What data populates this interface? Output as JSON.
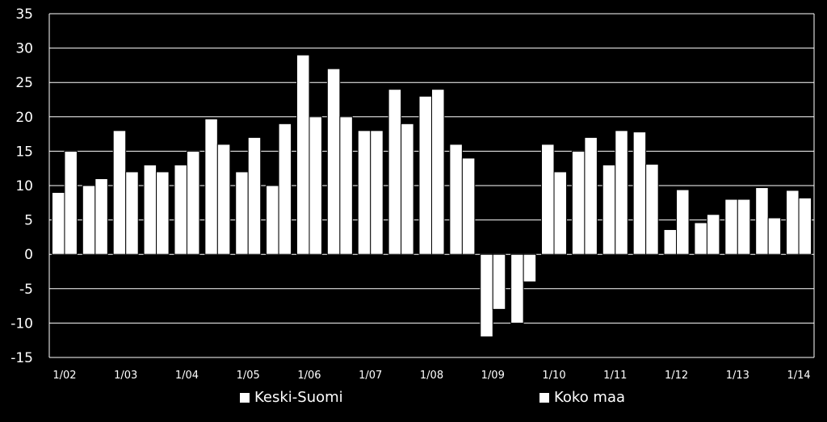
{
  "chart_data": {
    "type": "bar",
    "title": "",
    "xlabel": "",
    "ylabel": "",
    "ylim": [
      -15,
      35
    ],
    "yticks": [
      35,
      30,
      25,
      20,
      15,
      10,
      5,
      0,
      -5,
      -10,
      -15
    ],
    "grid": true,
    "legend_position": "bottom",
    "colors": {
      "background": "#000000",
      "bars": "#ffffff",
      "grid": "#ffffff",
      "text": "#ffffff"
    },
    "x_tick_labels": [
      {
        "label": "1/02",
        "index": 0
      },
      {
        "label": "1/03",
        "index": 2
      },
      {
        "label": "1/04",
        "index": 4
      },
      {
        "label": "1/05",
        "index": 6
      },
      {
        "label": "1/06",
        "index": 8
      },
      {
        "label": "1/07",
        "index": 10
      },
      {
        "label": "1/08",
        "index": 12
      },
      {
        "label": "1/09",
        "index": 14
      },
      {
        "label": "1/10",
        "index": 16
      },
      {
        "label": "1/11",
        "index": 18
      },
      {
        "label": "1/12",
        "index": 20
      },
      {
        "label": "1/13",
        "index": 22
      },
      {
        "label": "1/14",
        "index": 24
      }
    ],
    "series": [
      {
        "name": "Keski-Suomi",
        "values": [
          9,
          10,
          18,
          13,
          13,
          19.7,
          12,
          10,
          29,
          27,
          18,
          24,
          23,
          16,
          -12,
          -10,
          16,
          15,
          13,
          17.8,
          3.6,
          4.6,
          8,
          9.7,
          9.3
        ]
      },
      {
        "name": "Koko maa",
        "values": [
          15,
          11,
          12,
          12,
          15,
          16,
          17,
          19,
          20,
          20,
          18,
          19,
          24,
          14,
          -8,
          -4,
          12,
          17,
          18,
          13.1,
          9.4,
          5.8,
          8,
          5.3,
          8.2
        ]
      }
    ]
  }
}
